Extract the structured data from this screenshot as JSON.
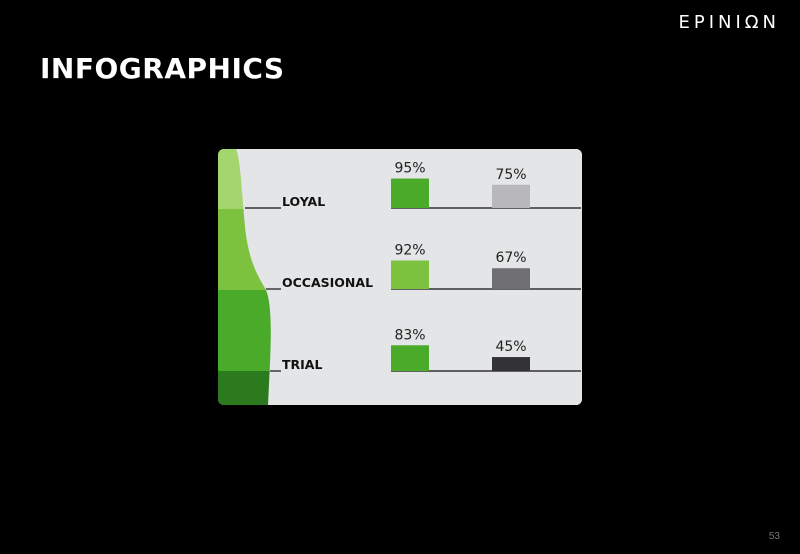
{
  "header": {
    "logo_text": "EPINIΩN",
    "title": "INFOGRAPHICS",
    "page_number": "53"
  },
  "colors": {
    "background": "#000000",
    "panel": "#e4e5e6",
    "band_loyal": "#a4d670",
    "band_occasional": "#7cc23e",
    "band_trial": "#4aaa2a",
    "band_bottom": "#2c7a1e",
    "bar_series1_loyal": "#4aaa2a",
    "bar_series1_occasional": "#7cc23e",
    "bar_series1_trial": "#4aaa2a",
    "bar_series2_loyal": "#b8b8ba",
    "bar_series2_occasional": "#707072",
    "bar_series2_trial": "#333335"
  },
  "chart_data": {
    "type": "bar",
    "categories": [
      "LOYAL",
      "OCCASIONAL",
      "TRIAL"
    ],
    "series": [
      {
        "values": [
          95,
          92,
          83
        ],
        "labels": [
          "95%",
          "92%",
          "83%"
        ]
      },
      {
        "values": [
          75,
          67,
          45
        ],
        "labels": [
          "75%",
          "67%",
          "45%"
        ]
      }
    ],
    "ylim": [
      0,
      100
    ]
  }
}
